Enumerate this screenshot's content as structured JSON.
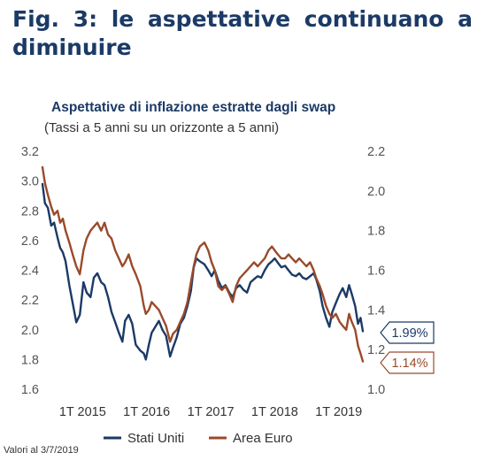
{
  "heading": {
    "line1": "Fig. 3: le aspettative continuano a",
    "line2": "diminuire"
  },
  "footnote": "Valori al 3/7/2019",
  "colors": {
    "us": "#1b3a66",
    "eu": "#9a4a2a",
    "heading": "#1b3a66"
  },
  "chart_data": {
    "type": "line",
    "title": "Aspettative di inflazione estratte dagli swap",
    "subtitle": "(Tassi a 5 anni su un orizzonte a 5 anni)",
    "x_ticks": [
      "1T 2015",
      "1T 2016",
      "1T 2017",
      "1T 2018",
      "1T 2019"
    ],
    "x_range": [
      "2014-07-01",
      "2019-07-03"
    ],
    "y_left": {
      "range": [
        1.6,
        3.2
      ],
      "ticks": [
        "1.6",
        "1.8",
        "2.0",
        "2.2",
        "2.4",
        "2.6",
        "2.8",
        "3.0",
        "3.2"
      ]
    },
    "y_right": {
      "range": [
        1.0,
        2.2
      ],
      "ticks": [
        "1.0",
        "1.2",
        "1.4",
        "1.6",
        "1.8",
        "2.0",
        "2.2"
      ]
    },
    "grid": false,
    "legend_position": "bottom",
    "series": [
      {
        "name": "Stati Uniti",
        "axis": "left",
        "color": "#1b3a66",
        "end_label": "1.99%",
        "points": [
          [
            "2014-07-01",
            2.98
          ],
          [
            "2014-07-15",
            2.85
          ],
          [
            "2014-08-01",
            2.82
          ],
          [
            "2014-08-20",
            2.7
          ],
          [
            "2014-09-05",
            2.72
          ],
          [
            "2014-09-25",
            2.62
          ],
          [
            "2014-10-10",
            2.55
          ],
          [
            "2014-10-25",
            2.52
          ],
          [
            "2014-11-10",
            2.46
          ],
          [
            "2014-12-01",
            2.3
          ],
          [
            "2014-12-20",
            2.18
          ],
          [
            "2015-01-10",
            2.05
          ],
          [
            "2015-01-30",
            2.1
          ],
          [
            "2015-02-20",
            2.32
          ],
          [
            "2015-03-10",
            2.25
          ],
          [
            "2015-04-01",
            2.22
          ],
          [
            "2015-04-20",
            2.35
          ],
          [
            "2015-05-10",
            2.38
          ],
          [
            "2015-06-01",
            2.32
          ],
          [
            "2015-06-20",
            2.3
          ],
          [
            "2015-07-10",
            2.22
          ],
          [
            "2015-07-30",
            2.12
          ],
          [
            "2015-08-20",
            2.05
          ],
          [
            "2015-09-10",
            1.98
          ],
          [
            "2015-09-30",
            1.92
          ],
          [
            "2015-10-15",
            2.06
          ],
          [
            "2015-11-05",
            2.1
          ],
          [
            "2015-11-25",
            2.04
          ],
          [
            "2015-12-15",
            1.9
          ],
          [
            "2016-01-10",
            1.86
          ],
          [
            "2016-01-30",
            1.84
          ],
          [
            "2016-02-11",
            1.8
          ],
          [
            "2016-02-28",
            1.9
          ],
          [
            "2016-03-15",
            1.98
          ],
          [
            "2016-04-05",
            2.02
          ],
          [
            "2016-04-25",
            2.06
          ],
          [
            "2016-05-15",
            2.0
          ],
          [
            "2016-06-05",
            1.96
          ],
          [
            "2016-06-28",
            1.82
          ],
          [
            "2016-07-15",
            1.88
          ],
          [
            "2016-08-05",
            1.95
          ],
          [
            "2016-08-25",
            2.04
          ],
          [
            "2016-09-15",
            2.08
          ],
          [
            "2016-10-05",
            2.16
          ],
          [
            "2016-10-25",
            2.26
          ],
          [
            "2016-11-10",
            2.42
          ],
          [
            "2016-11-25",
            2.48
          ],
          [
            "2016-12-15",
            2.46
          ],
          [
            "2017-01-10",
            2.44
          ],
          [
            "2017-02-01",
            2.4
          ],
          [
            "2017-02-20",
            2.36
          ],
          [
            "2017-03-10",
            2.4
          ],
          [
            "2017-03-30",
            2.33
          ],
          [
            "2017-04-20",
            2.28
          ],
          [
            "2017-05-10",
            2.3
          ],
          [
            "2017-06-01",
            2.25
          ],
          [
            "2017-06-20",
            2.22
          ],
          [
            "2017-07-10",
            2.28
          ],
          [
            "2017-07-30",
            2.3
          ],
          [
            "2017-08-20",
            2.27
          ],
          [
            "2017-09-10",
            2.25
          ],
          [
            "2017-09-30",
            2.32
          ],
          [
            "2017-10-20",
            2.34
          ],
          [
            "2017-11-10",
            2.36
          ],
          [
            "2017-11-30",
            2.35
          ],
          [
            "2017-12-20",
            2.4
          ],
          [
            "2018-01-10",
            2.44
          ],
          [
            "2018-01-30",
            2.46
          ],
          [
            "2018-02-15",
            2.48
          ],
          [
            "2018-03-05",
            2.45
          ],
          [
            "2018-03-25",
            2.42
          ],
          [
            "2018-04-15",
            2.43
          ],
          [
            "2018-05-05",
            2.4
          ],
          [
            "2018-05-25",
            2.37
          ],
          [
            "2018-06-15",
            2.36
          ],
          [
            "2018-07-05",
            2.38
          ],
          [
            "2018-07-25",
            2.35
          ],
          [
            "2018-08-15",
            2.34
          ],
          [
            "2018-09-05",
            2.36
          ],
          [
            "2018-09-25",
            2.38
          ],
          [
            "2018-10-10",
            2.34
          ],
          [
            "2018-10-30",
            2.26
          ],
          [
            "2018-11-15",
            2.16
          ],
          [
            "2018-12-05",
            2.08
          ],
          [
            "2018-12-24",
            2.02
          ],
          [
            "2019-01-10",
            2.12
          ],
          [
            "2019-01-30",
            2.18
          ],
          [
            "2019-02-20",
            2.24
          ],
          [
            "2019-03-10",
            2.28
          ],
          [
            "2019-03-30",
            2.22
          ],
          [
            "2019-04-15",
            2.3
          ],
          [
            "2019-05-01",
            2.24
          ],
          [
            "2019-05-20",
            2.16
          ],
          [
            "2019-06-05",
            2.04
          ],
          [
            "2019-06-20",
            2.08
          ],
          [
            "2019-07-03",
            1.99
          ]
        ]
      },
      {
        "name": "Area Euro",
        "axis": "right",
        "color": "#9a4a2a",
        "end_label": "1.14%",
        "points": [
          [
            "2014-07-01",
            2.12
          ],
          [
            "2014-07-15",
            2.04
          ],
          [
            "2014-08-01",
            1.98
          ],
          [
            "2014-08-20",
            1.92
          ],
          [
            "2014-09-05",
            1.88
          ],
          [
            "2014-09-25",
            1.9
          ],
          [
            "2014-10-10",
            1.84
          ],
          [
            "2014-10-25",
            1.86
          ],
          [
            "2014-11-10",
            1.8
          ],
          [
            "2014-12-01",
            1.74
          ],
          [
            "2014-12-20",
            1.68
          ],
          [
            "2015-01-10",
            1.62
          ],
          [
            "2015-01-30",
            1.58
          ],
          [
            "2015-02-20",
            1.7
          ],
          [
            "2015-03-10",
            1.76
          ],
          [
            "2015-04-01",
            1.8
          ],
          [
            "2015-04-20",
            1.82
          ],
          [
            "2015-05-10",
            1.84
          ],
          [
            "2015-06-01",
            1.8
          ],
          [
            "2015-06-20",
            1.84
          ],
          [
            "2015-07-10",
            1.78
          ],
          [
            "2015-07-30",
            1.76
          ],
          [
            "2015-08-20",
            1.7
          ],
          [
            "2015-09-10",
            1.66
          ],
          [
            "2015-09-30",
            1.62
          ],
          [
            "2015-10-15",
            1.64
          ],
          [
            "2015-11-05",
            1.68
          ],
          [
            "2015-11-25",
            1.62
          ],
          [
            "2015-12-15",
            1.58
          ],
          [
            "2016-01-10",
            1.52
          ],
          [
            "2016-01-30",
            1.42
          ],
          [
            "2016-02-11",
            1.38
          ],
          [
            "2016-02-28",
            1.4
          ],
          [
            "2016-03-15",
            1.44
          ],
          [
            "2016-04-05",
            1.42
          ],
          [
            "2016-04-25",
            1.4
          ],
          [
            "2016-05-15",
            1.36
          ],
          [
            "2016-06-05",
            1.32
          ],
          [
            "2016-06-28",
            1.24
          ],
          [
            "2016-07-15",
            1.28
          ],
          [
            "2016-08-05",
            1.3
          ],
          [
            "2016-08-25",
            1.34
          ],
          [
            "2016-09-15",
            1.38
          ],
          [
            "2016-10-05",
            1.44
          ],
          [
            "2016-10-25",
            1.54
          ],
          [
            "2016-11-10",
            1.62
          ],
          [
            "2016-11-25",
            1.68
          ],
          [
            "2016-12-15",
            1.72
          ],
          [
            "2017-01-10",
            1.74
          ],
          [
            "2017-02-01",
            1.7
          ],
          [
            "2017-02-20",
            1.64
          ],
          [
            "2017-03-10",
            1.6
          ],
          [
            "2017-03-30",
            1.52
          ],
          [
            "2017-04-20",
            1.5
          ],
          [
            "2017-05-10",
            1.52
          ],
          [
            "2017-06-01",
            1.48
          ],
          [
            "2017-06-20",
            1.44
          ],
          [
            "2017-07-10",
            1.52
          ],
          [
            "2017-07-30",
            1.56
          ],
          [
            "2017-08-20",
            1.58
          ],
          [
            "2017-09-10",
            1.6
          ],
          [
            "2017-09-30",
            1.62
          ],
          [
            "2017-10-20",
            1.64
          ],
          [
            "2017-11-10",
            1.62
          ],
          [
            "2017-11-30",
            1.64
          ],
          [
            "2017-12-20",
            1.66
          ],
          [
            "2018-01-10",
            1.7
          ],
          [
            "2018-01-30",
            1.72
          ],
          [
            "2018-02-15",
            1.7
          ],
          [
            "2018-03-05",
            1.68
          ],
          [
            "2018-03-25",
            1.66
          ],
          [
            "2018-04-15",
            1.66
          ],
          [
            "2018-05-05",
            1.68
          ],
          [
            "2018-05-25",
            1.66
          ],
          [
            "2018-06-15",
            1.64
          ],
          [
            "2018-07-05",
            1.66
          ],
          [
            "2018-07-25",
            1.64
          ],
          [
            "2018-08-15",
            1.62
          ],
          [
            "2018-09-05",
            1.64
          ],
          [
            "2018-09-25",
            1.6
          ],
          [
            "2018-10-10",
            1.56
          ],
          [
            "2018-10-30",
            1.52
          ],
          [
            "2018-11-15",
            1.48
          ],
          [
            "2018-12-05",
            1.42
          ],
          [
            "2018-12-24",
            1.38
          ],
          [
            "2019-01-10",
            1.36
          ],
          [
            "2019-01-30",
            1.38
          ],
          [
            "2019-02-20",
            1.34
          ],
          [
            "2019-03-10",
            1.32
          ],
          [
            "2019-03-30",
            1.3
          ],
          [
            "2019-04-15",
            1.38
          ],
          [
            "2019-05-01",
            1.34
          ],
          [
            "2019-05-20",
            1.3
          ],
          [
            "2019-06-05",
            1.22
          ],
          [
            "2019-06-20",
            1.18
          ],
          [
            "2019-07-03",
            1.14
          ]
        ]
      }
    ]
  }
}
